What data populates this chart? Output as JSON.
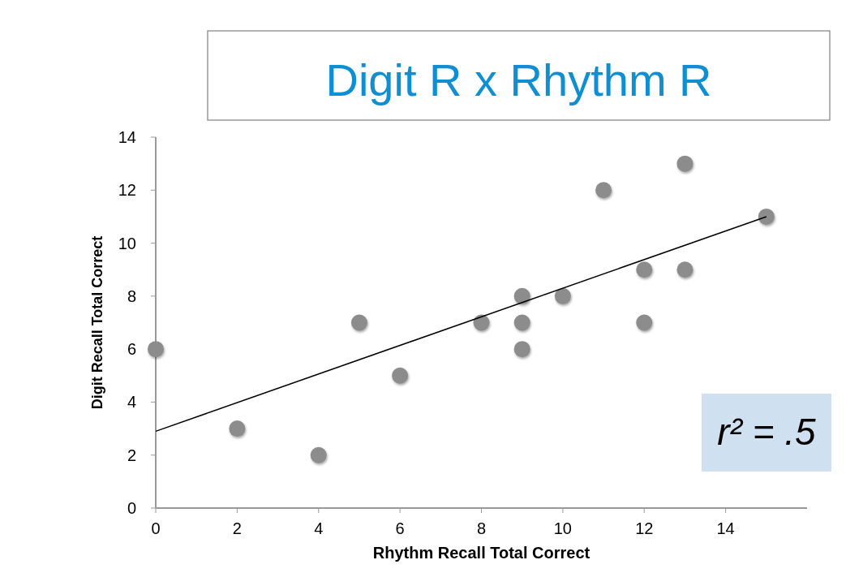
{
  "chart_data": {
    "type": "scatter",
    "title": "Digit R x Rhythm R",
    "xlabel": "Rhythm Recall Total Correct",
    "ylabel": "Digit Recall Total Correct",
    "xlim": [
      0,
      16
    ],
    "xticks": [
      0,
      2,
      4,
      6,
      8,
      10,
      12,
      14
    ],
    "ylim": [
      0,
      14
    ],
    "yticks": [
      0,
      2,
      4,
      6,
      8,
      10,
      12,
      14
    ],
    "grid": false,
    "marker": "circle",
    "series": [
      {
        "color": "#8c8c8c",
        "x": [
          0,
          2,
          4,
          5,
          6,
          8,
          9,
          9,
          9,
          10,
          11,
          12,
          12,
          13,
          13,
          15
        ],
        "values": [
          6,
          3,
          2,
          7,
          5,
          7,
          8,
          7,
          6,
          8,
          12,
          9,
          7,
          13,
          9,
          11
        ]
      },
      {
        "type": "line",
        "color": "#000000",
        "marker": "none",
        "line_style": "solid",
        "x": [
          0,
          15
        ],
        "values": [
          2.9,
          11
        ]
      }
    ],
    "annotations": [
      "r² = .5"
    ]
  }
}
